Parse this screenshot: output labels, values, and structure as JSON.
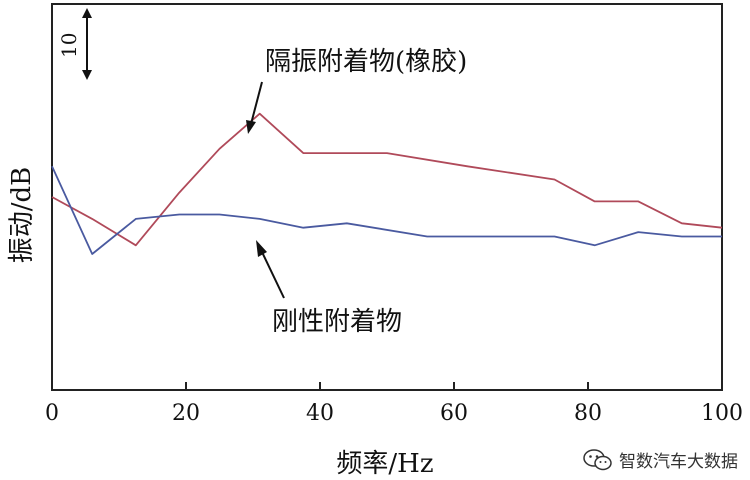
{
  "chart_data": {
    "type": "line",
    "xlabel": "频率/Hz",
    "ylabel": "振动/dB",
    "xlim": [
      0,
      100
    ],
    "xticks": [
      "0",
      "20",
      "40",
      "60",
      "80",
      "100"
    ],
    "scale_bar_label": "10",
    "grid": false,
    "series": [
      {
        "name": "隔振附着物(橡胶)",
        "color": "#b04a5a",
        "x": [
          0,
          6,
          12.5,
          19,
          25,
          31,
          37.5,
          50,
          62,
          75,
          81,
          87.5,
          94,
          100
        ],
        "y": [
          2.0,
          -0.5,
          -3.5,
          2.5,
          7.5,
          11.5,
          7.0,
          7.0,
          5.5,
          4.0,
          1.5,
          1.5,
          -1.0,
          -1.5
        ]
      },
      {
        "name": "刚性附着物",
        "color": "#4a5aa0",
        "x": [
          0,
          6,
          12.5,
          19,
          25,
          31,
          37.5,
          44,
          56,
          69,
          75,
          81,
          87.5,
          94,
          100
        ],
        "y": [
          5.5,
          -4.5,
          -0.5,
          0.0,
          0.0,
          -0.5,
          -1.5,
          -1.0,
          -2.5,
          -2.5,
          -2.5,
          -3.5,
          -2.0,
          -2.5,
          -2.5
        ]
      }
    ],
    "annotations": [
      "隔振附着物(橡胶)",
      "刚性附着物"
    ]
  },
  "watermark": {
    "text": "智数汽车大数据",
    "icon": "wechat-icon"
  }
}
